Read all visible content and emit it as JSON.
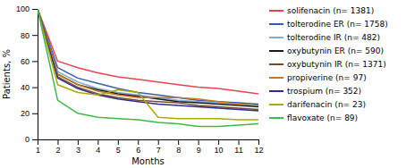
{
  "chart_data": {
    "type": "line",
    "xlabel": "Months",
    "ylabel": "Patients, %",
    "x": [
      1,
      2,
      3,
      4,
      5,
      6,
      7,
      8,
      9,
      10,
      11,
      12
    ],
    "series": [
      {
        "name": "solifenacin (n= 1381)",
        "color": "#e8434e",
        "values": [
          100,
          60,
          55,
          51,
          48,
          46,
          44,
          42,
          40,
          39,
          37,
          35
        ]
      },
      {
        "name": "tolterodine ER (n= 1758)",
        "color": "#3a5ca8",
        "values": [
          100,
          55,
          47,
          43,
          39,
          36,
          34,
          32,
          30,
          29,
          28,
          27
        ]
      },
      {
        "name": "tolterodine IR (n= 482)",
        "color": "#7bafd4",
        "values": [
          100,
          52,
          44,
          39,
          36,
          34,
          32,
          30,
          29,
          28,
          27,
          26
        ]
      },
      {
        "name": "oxybutynin ER (n= 590)",
        "color": "#1a1a1a",
        "values": [
          100,
          50,
          42,
          38,
          35,
          33,
          31,
          29,
          28,
          27,
          26,
          25
        ]
      },
      {
        "name": "oxybutynin IR (n= 1371)",
        "color": "#7b4a2b",
        "values": [
          100,
          48,
          40,
          35,
          32,
          30,
          29,
          28,
          26,
          25,
          24,
          23
        ]
      },
      {
        "name": "propiverine (n= 97)",
        "color": "#c87820",
        "values": [
          100,
          50,
          42,
          37,
          34,
          32,
          32,
          32,
          31,
          29,
          27,
          26
        ]
      },
      {
        "name": "trospium (n= 352)",
        "color": "#2e2b8e",
        "values": [
          100,
          47,
          39,
          34,
          31,
          29,
          27,
          26,
          25,
          24,
          23,
          22
        ]
      },
      {
        "name": "darifenacin (n= 23)",
        "color": "#aaaa00",
        "values": [
          100,
          42,
          36,
          34,
          38,
          36,
          17,
          16,
          16,
          16,
          15,
          15
        ]
      },
      {
        "name": "flavoxate (n= 89)",
        "color": "#3db849",
        "values": [
          100,
          30,
          20,
          17,
          16,
          15,
          13,
          12,
          10,
          10,
          11,
          12
        ]
      }
    ],
    "xlim": [
      1,
      12
    ],
    "ylim": [
      0,
      100
    ],
    "xticks": [
      1,
      2,
      3,
      4,
      5,
      6,
      7,
      8,
      9,
      10,
      11,
      12
    ],
    "yticks": [
      0,
      20,
      40,
      60,
      80,
      100
    ],
    "grid": false,
    "legend": "right"
  }
}
